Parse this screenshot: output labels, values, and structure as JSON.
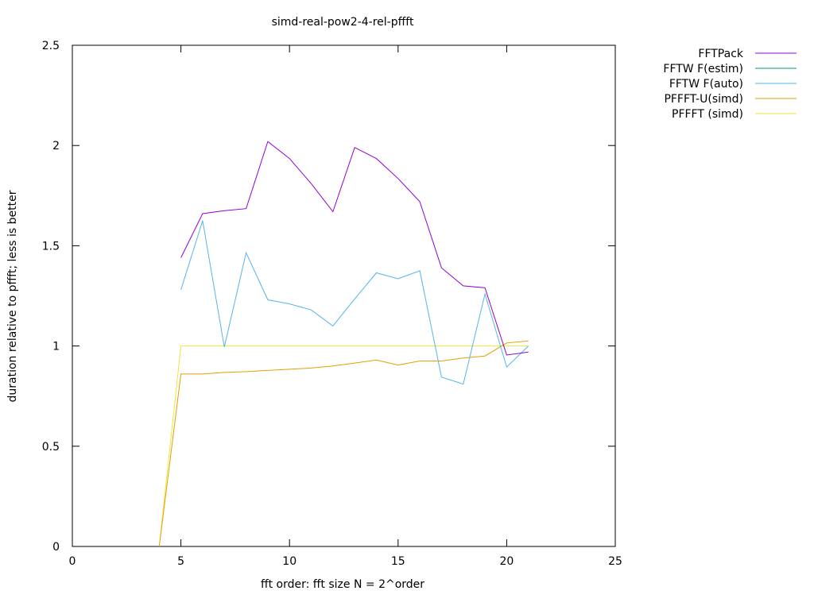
{
  "chart_data": {
    "type": "line",
    "title": "simd-real-pow2-4-rel-pffft",
    "xlabel": "fft order: fft size N = 2^order",
    "ylabel": "duration relative to pffft; less is better",
    "xlim": [
      0,
      25
    ],
    "ylim": [
      0,
      2.5
    ],
    "xticks": [
      "0",
      "5",
      "10",
      "15",
      "20",
      "25"
    ],
    "yticks": [
      "0",
      "0.5",
      "1",
      "1.5",
      "2",
      "2.5"
    ],
    "grid": false,
    "legend_position": "outside top-right",
    "series": [
      {
        "name": "FFTPack",
        "color": "#9400d3",
        "x": [
          5,
          6,
          7,
          8,
          9,
          10,
          11,
          12,
          13,
          14,
          15,
          16,
          17,
          18,
          19,
          20,
          21
        ],
        "y": [
          1.44,
          1.66,
          1.675,
          1.685,
          2.02,
          1.935,
          1.81,
          1.67,
          1.99,
          1.935,
          1.835,
          1.72,
          1.39,
          1.3,
          1.29,
          0.955,
          0.97
        ]
      },
      {
        "name": "FFTW F(estim)",
        "color": "#009e73",
        "x": [],
        "y": []
      },
      {
        "name": "FFTW F(auto)",
        "color": "#56b4e9",
        "x": [
          5,
          6,
          7,
          8,
          9,
          10,
          11,
          12,
          13,
          14,
          15,
          16,
          17,
          18,
          19,
          20,
          21
        ],
        "y": [
          1.28,
          1.625,
          0.995,
          1.465,
          1.23,
          1.21,
          1.18,
          1.1,
          1.235,
          1.365,
          1.335,
          1.375,
          0.845,
          0.81,
          1.26,
          0.895,
          1.0
        ]
      },
      {
        "name": "PFFFT-U(simd)",
        "color": "#e69f00",
        "x": [
          4,
          5,
          6,
          7,
          8,
          9,
          10,
          11,
          12,
          13,
          14,
          15,
          16,
          17,
          18,
          19,
          20,
          21
        ],
        "y": [
          0,
          0.86,
          0.86,
          0.868,
          0.872,
          0.878,
          0.884,
          0.89,
          0.9,
          0.915,
          0.93,
          0.905,
          0.925,
          0.925,
          0.94,
          0.95,
          1.015,
          1.025
        ]
      },
      {
        "name": "PFFFT (simd)",
        "color": "#f0e442",
        "x": [
          4,
          5,
          6,
          7,
          8,
          9,
          10,
          11,
          12,
          13,
          14,
          15,
          16,
          17,
          18,
          19,
          20,
          21
        ],
        "y": [
          0,
          1,
          1,
          1,
          1,
          1,
          1,
          1,
          1,
          1,
          1,
          1,
          1,
          1,
          1,
          1,
          1,
          1
        ]
      }
    ]
  }
}
